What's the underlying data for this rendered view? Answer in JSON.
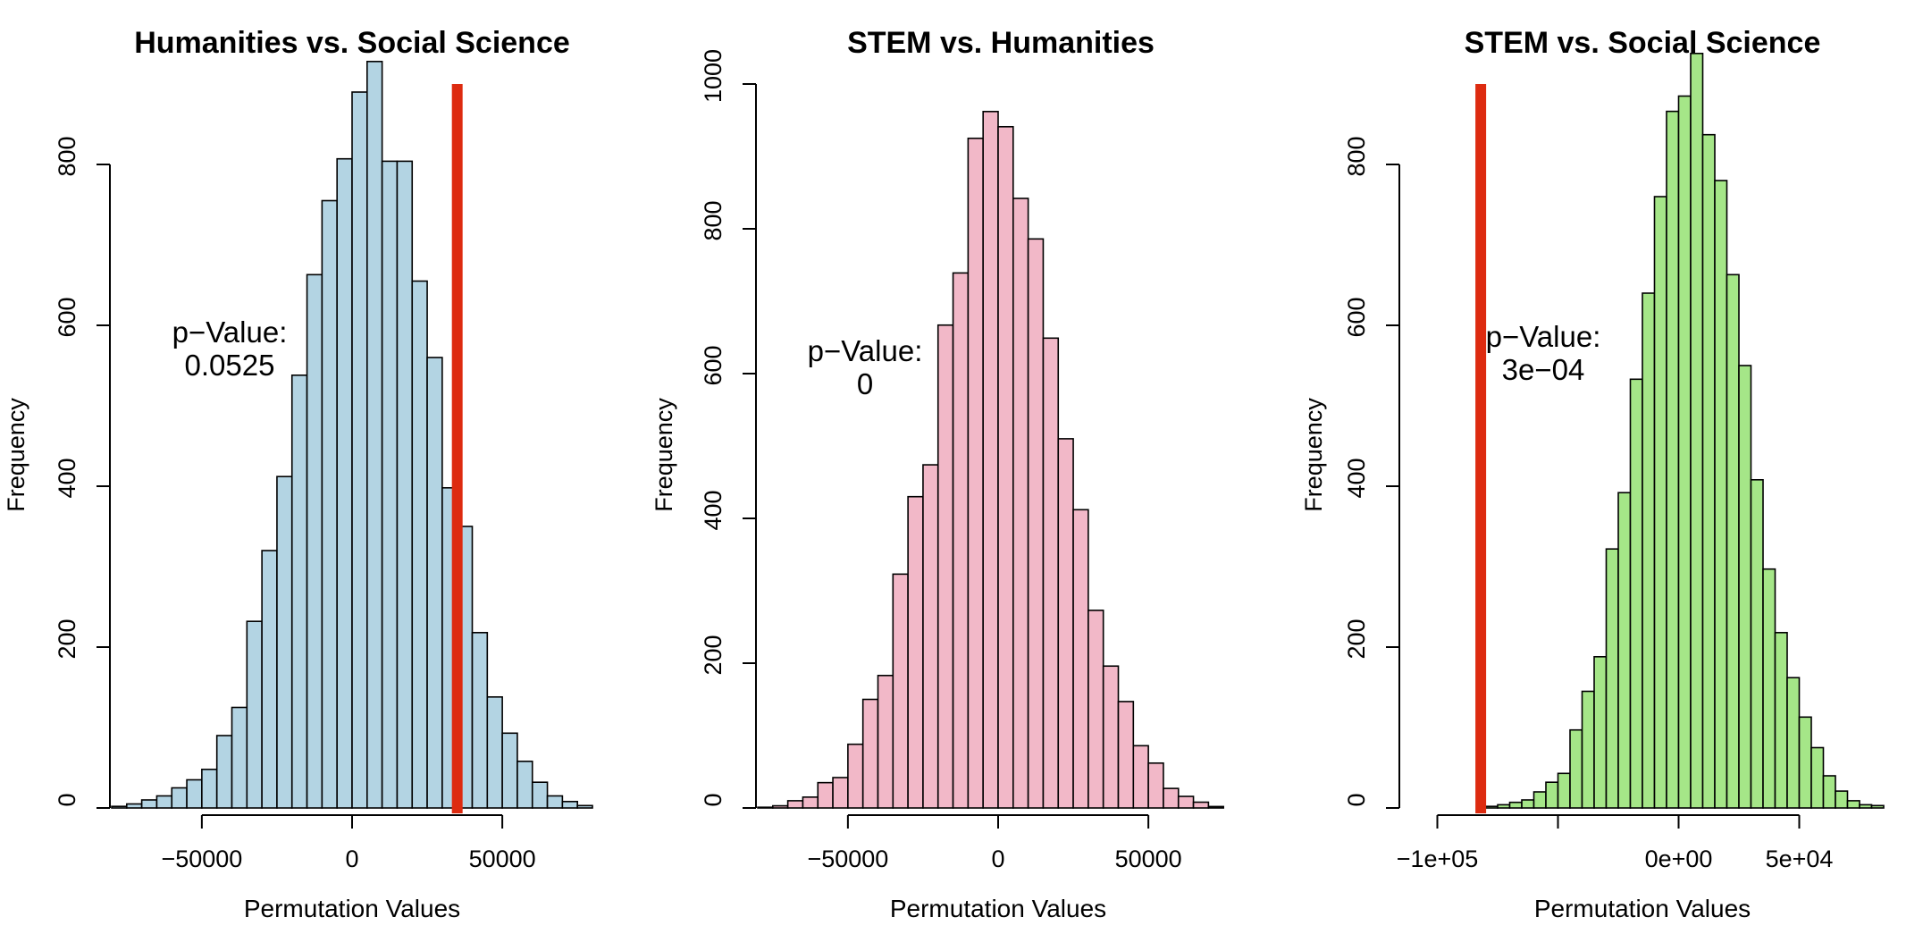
{
  "chart_data": [
    {
      "type": "bar",
      "title": "Humanities vs. Social Science",
      "xlabel": "Permutation Values",
      "ylabel": "Frequency",
      "bin_width": 5000,
      "bin_start": -80000,
      "values": [
        2,
        5,
        10,
        15,
        25,
        35,
        48,
        90,
        125,
        232,
        320,
        412,
        538,
        663,
        755,
        807,
        890,
        928,
        804,
        804,
        655,
        560,
        398,
        350,
        218,
        138,
        93,
        58,
        32,
        15,
        8,
        3
      ],
      "xlim": [
        -80000,
        80000
      ],
      "ylim": [
        0,
        900
      ],
      "xticks": [
        -50000,
        0,
        50000
      ],
      "xtick_labels": [
        "−50000",
        "0",
        "50000"
      ],
      "yticks": [
        0,
        200,
        400,
        600,
        800
      ],
      "ytick_labels": [
        "0",
        "200",
        "400",
        "600",
        "800"
      ],
      "observed_line": 35000,
      "colors": {
        "bar": "#b3d4e3",
        "line": "#dd2b10"
      },
      "annotation": [
        "p−Value:",
        "0.0525"
      ]
    },
    {
      "type": "bar",
      "title": "STEM vs. Humanities",
      "xlabel": "Permutation Values",
      "ylabel": "Frequency",
      "bin_width": 5000,
      "bin_start": -80000,
      "values": [
        1,
        3,
        10,
        15,
        35,
        42,
        88,
        150,
        183,
        323,
        430,
        474,
        667,
        739,
        925,
        962,
        941,
        842,
        786,
        649,
        510,
        412,
        273,
        196,
        147,
        86,
        62,
        27,
        16,
        8,
        2
      ],
      "xlim": [
        -80000,
        80000
      ],
      "ylim": [
        0,
        1000
      ],
      "xticks": [
        -50000,
        0,
        50000
      ],
      "xtick_labels": [
        "−50000",
        "0",
        "50000"
      ],
      "yticks": [
        0,
        200,
        400,
        600,
        800,
        1000
      ],
      "ytick_labels": [
        "0",
        "200",
        "400",
        "600",
        "800",
        "1000"
      ],
      "colors": {
        "bar": "#f2b8c8",
        "line": "#dd2b10"
      },
      "annotation": [
        "p−Value:",
        "0"
      ]
    },
    {
      "type": "bar",
      "title": "STEM vs. Social Science",
      "xlabel": "Permutation Values",
      "ylabel": "Frequency",
      "bin_width": 5000,
      "bin_start": -80000,
      "values": [
        2,
        4,
        7,
        10,
        20,
        32,
        43,
        97,
        145,
        188,
        322,
        392,
        533,
        640,
        760,
        866,
        885,
        938,
        837,
        780,
        663,
        550,
        408,
        297,
        218,
        162,
        113,
        75,
        40,
        21,
        9,
        4,
        3
      ],
      "xlim": [
        -115000,
        85000
      ],
      "ylim": [
        0,
        900
      ],
      "xticks": [
        -100000,
        -50000,
        0,
        50000
      ],
      "xtick_labels": [
        "−1e+05",
        "",
        "0e+00",
        "5e+04"
      ],
      "yticks": [
        0,
        200,
        400,
        600,
        800
      ],
      "ytick_labels": [
        "0",
        "200",
        "400",
        "600",
        "800"
      ],
      "observed_line": -82000,
      "colors": {
        "bar": "#a5e688",
        "line": "#dd2b10"
      },
      "annotation": [
        "p−Value:",
        "3e−04"
      ]
    }
  ]
}
